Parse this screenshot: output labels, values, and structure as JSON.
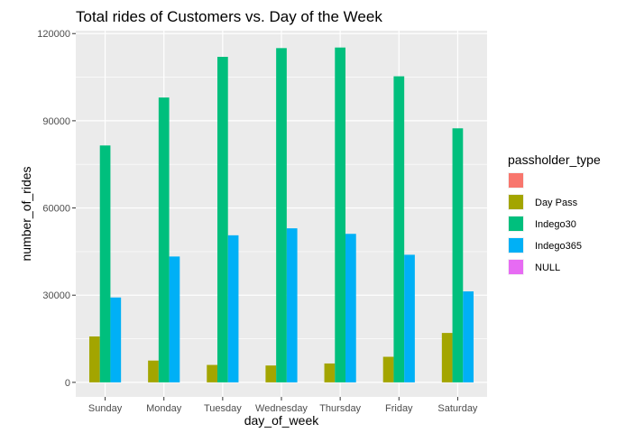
{
  "chart_data": {
    "type": "bar",
    "title": "Total rides of Customers vs. Day of the Week",
    "xlabel": "day_of_week",
    "ylabel": "number_of_rides",
    "categories": [
      "Sunday",
      "Monday",
      "Tuesday",
      "Wednesday",
      "Thursday",
      "Friday",
      "Saturday"
    ],
    "ylim": [
      -5000,
      121000
    ],
    "yticks": [
      0,
      30000,
      60000,
      90000,
      120000
    ],
    "grid": true,
    "legend_title": "passholder_type",
    "legend_position": "right",
    "series": [
      {
        "name": "",
        "color": "#F8766D",
        "values": [
          0,
          0,
          0,
          0,
          0,
          0,
          0
        ]
      },
      {
        "name": "Day Pass",
        "color": "#A3A500",
        "values": [
          15800,
          7500,
          6000,
          5800,
          6500,
          8800,
          17000
        ]
      },
      {
        "name": "Indego30",
        "color": "#00BF7D",
        "values": [
          81500,
          98000,
          112000,
          115000,
          115200,
          105300,
          87400
        ]
      },
      {
        "name": "Indego365",
        "color": "#00B0F6",
        "values": [
          29200,
          43300,
          50600,
          53000,
          51100,
          43900,
          31300
        ]
      },
      {
        "name": "NULL",
        "color": "#E76BF3",
        "values": [
          0,
          0,
          0,
          0,
          0,
          0,
          0
        ]
      }
    ]
  }
}
